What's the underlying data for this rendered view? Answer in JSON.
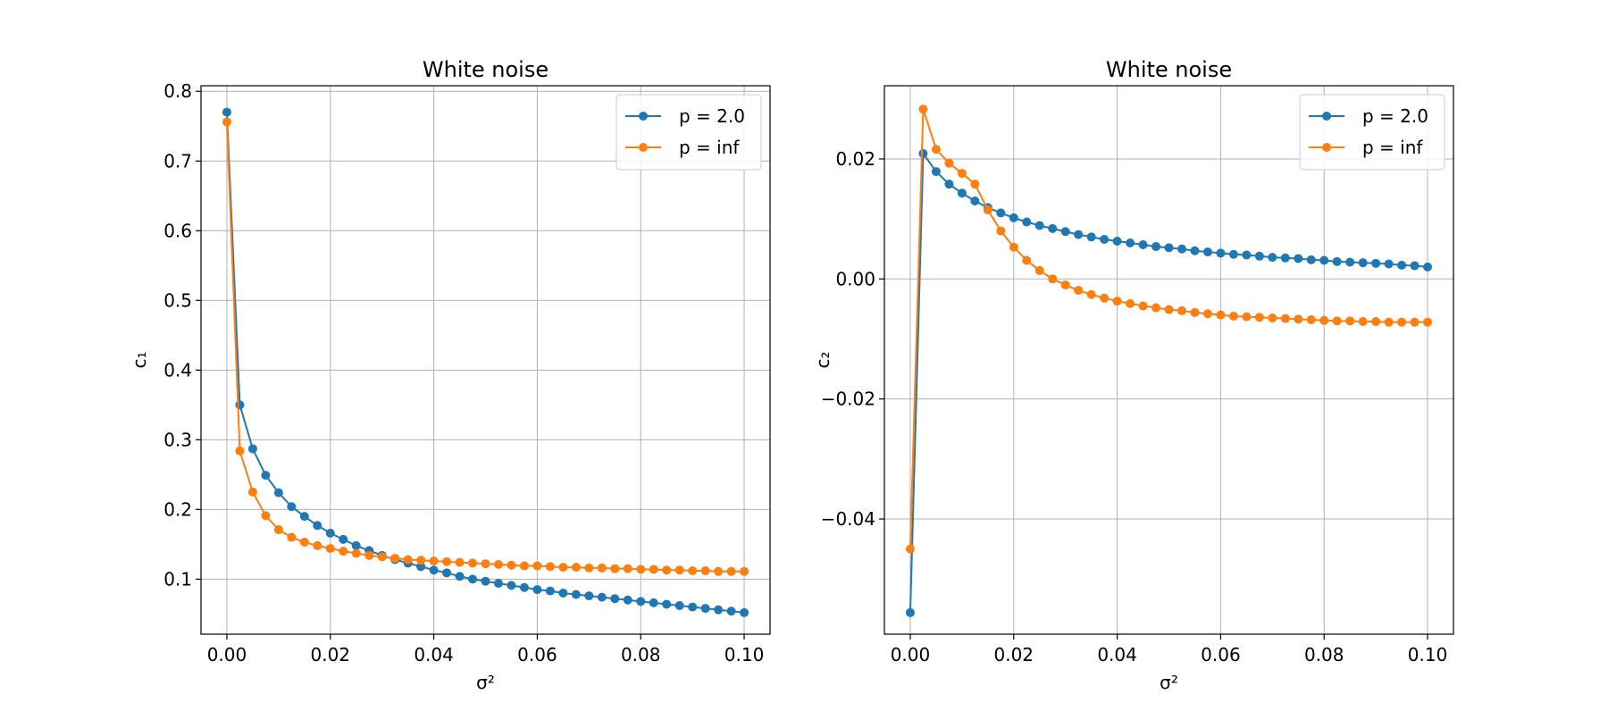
{
  "chart_data": [
    {
      "type": "line",
      "title": "White noise",
      "xlabel": "σ²",
      "ylabel": "c₁",
      "xlim": [
        -0.005,
        0.105
      ],
      "ylim": [
        0.021,
        0.808
      ],
      "xticks": [
        0.0,
        0.02,
        0.04,
        0.06,
        0.08,
        0.1
      ],
      "xtick_labels": [
        "0.00",
        "0.02",
        "0.04",
        "0.06",
        "0.08",
        "0.10"
      ],
      "yticks": [
        0.1,
        0.2,
        0.3,
        0.4,
        0.5,
        0.6,
        0.7,
        0.8
      ],
      "ytick_labels": [
        "0.1",
        "0.2",
        "0.3",
        "0.4",
        "0.5",
        "0.6",
        "0.7",
        "0.8"
      ],
      "grid": true,
      "legend_position": "upper right",
      "x": [
        0.0,
        0.0025,
        0.005,
        0.0075,
        0.01,
        0.0125,
        0.015,
        0.0175,
        0.02,
        0.0225,
        0.025,
        0.0275,
        0.03,
        0.0325,
        0.035,
        0.0375,
        0.04,
        0.0425,
        0.045,
        0.0475,
        0.05,
        0.0525,
        0.055,
        0.0575,
        0.06,
        0.0625,
        0.065,
        0.0675,
        0.07,
        0.0725,
        0.075,
        0.0775,
        0.08,
        0.0825,
        0.085,
        0.0875,
        0.09,
        0.0925,
        0.095,
        0.0975,
        0.1
      ],
      "series": [
        {
          "name": "p = 2.0",
          "color": "#1f77b4",
          "values": [
            0.77,
            0.35,
            0.287,
            0.249,
            0.224,
            0.204,
            0.19,
            0.177,
            0.166,
            0.157,
            0.148,
            0.141,
            0.134,
            0.128,
            0.123,
            0.118,
            0.113,
            0.109,
            0.104,
            0.1,
            0.097,
            0.094,
            0.091,
            0.088,
            0.085,
            0.083,
            0.08,
            0.078,
            0.076,
            0.074,
            0.072,
            0.07,
            0.068,
            0.066,
            0.064,
            0.062,
            0.06,
            0.058,
            0.056,
            0.054,
            0.052
          ]
        },
        {
          "name": "p = inf",
          "color": "#ff7f0e",
          "values": [
            0.756,
            0.284,
            0.225,
            0.191,
            0.171,
            0.16,
            0.153,
            0.148,
            0.144,
            0.14,
            0.137,
            0.134,
            0.132,
            0.13,
            0.128,
            0.127,
            0.126,
            0.125,
            0.124,
            0.123,
            0.122,
            0.121,
            0.12,
            0.119,
            0.119,
            0.118,
            0.117,
            0.117,
            0.116,
            0.116,
            0.115,
            0.115,
            0.114,
            0.114,
            0.113,
            0.113,
            0.112,
            0.112,
            0.111,
            0.111,
            0.111
          ]
        }
      ]
    },
    {
      "type": "line",
      "title": "White noise",
      "xlabel": "σ²",
      "ylabel": "c₂",
      "xlim": [
        -0.005,
        0.105
      ],
      "ylim": [
        -0.0592,
        0.0322
      ],
      "xticks": [
        0.0,
        0.02,
        0.04,
        0.06,
        0.08,
        0.1
      ],
      "xtick_labels": [
        "0.00",
        "0.02",
        "0.04",
        "0.06",
        "0.08",
        "0.10"
      ],
      "yticks": [
        -0.04,
        -0.02,
        0.0,
        0.02
      ],
      "ytick_labels": [
        "−0.04",
        "−0.02",
        "0.00",
        "0.02"
      ],
      "grid": true,
      "legend_position": "upper right",
      "x": [
        0.0,
        0.0025,
        0.005,
        0.0075,
        0.01,
        0.0125,
        0.015,
        0.0175,
        0.02,
        0.0225,
        0.025,
        0.0275,
        0.03,
        0.0325,
        0.035,
        0.0375,
        0.04,
        0.0425,
        0.045,
        0.0475,
        0.05,
        0.0525,
        0.055,
        0.0575,
        0.06,
        0.0625,
        0.065,
        0.0675,
        0.07,
        0.0725,
        0.075,
        0.0775,
        0.08,
        0.0825,
        0.085,
        0.0875,
        0.09,
        0.0925,
        0.095,
        0.0975,
        0.1
      ],
      "series": [
        {
          "name": "p = 2.0",
          "color": "#1f77b4",
          "values": [
            -0.0556,
            0.0209,
            0.0179,
            0.0158,
            0.0143,
            0.013,
            0.0119,
            0.011,
            0.0102,
            0.0095,
            0.0089,
            0.0084,
            0.0079,
            0.0074,
            0.007,
            0.0066,
            0.0063,
            0.006,
            0.0057,
            0.0054,
            0.0052,
            0.005,
            0.0047,
            0.0045,
            0.0043,
            0.0041,
            0.004,
            0.0038,
            0.0036,
            0.0035,
            0.0034,
            0.0032,
            0.0031,
            0.0029,
            0.0028,
            0.0027,
            0.0026,
            0.0025,
            0.0023,
            0.0022,
            0.002
          ]
        },
        {
          "name": "p = inf",
          "color": "#ff7f0e",
          "values": [
            -0.045,
            0.0283,
            0.0216,
            0.0193,
            0.0176,
            0.0158,
            0.0115,
            0.008,
            0.0053,
            0.0031,
            0.0014,
            0.0,
            -0.001,
            -0.0019,
            -0.0026,
            -0.0032,
            -0.0037,
            -0.0041,
            -0.0045,
            -0.0048,
            -0.0051,
            -0.0053,
            -0.0056,
            -0.0058,
            -0.006,
            -0.0062,
            -0.0063,
            -0.0064,
            -0.0065,
            -0.0066,
            -0.0067,
            -0.0068,
            -0.0069,
            -0.007,
            -0.007,
            -0.0071,
            -0.0071,
            -0.0072,
            -0.0072,
            -0.0072,
            -0.0072
          ]
        }
      ]
    }
  ]
}
